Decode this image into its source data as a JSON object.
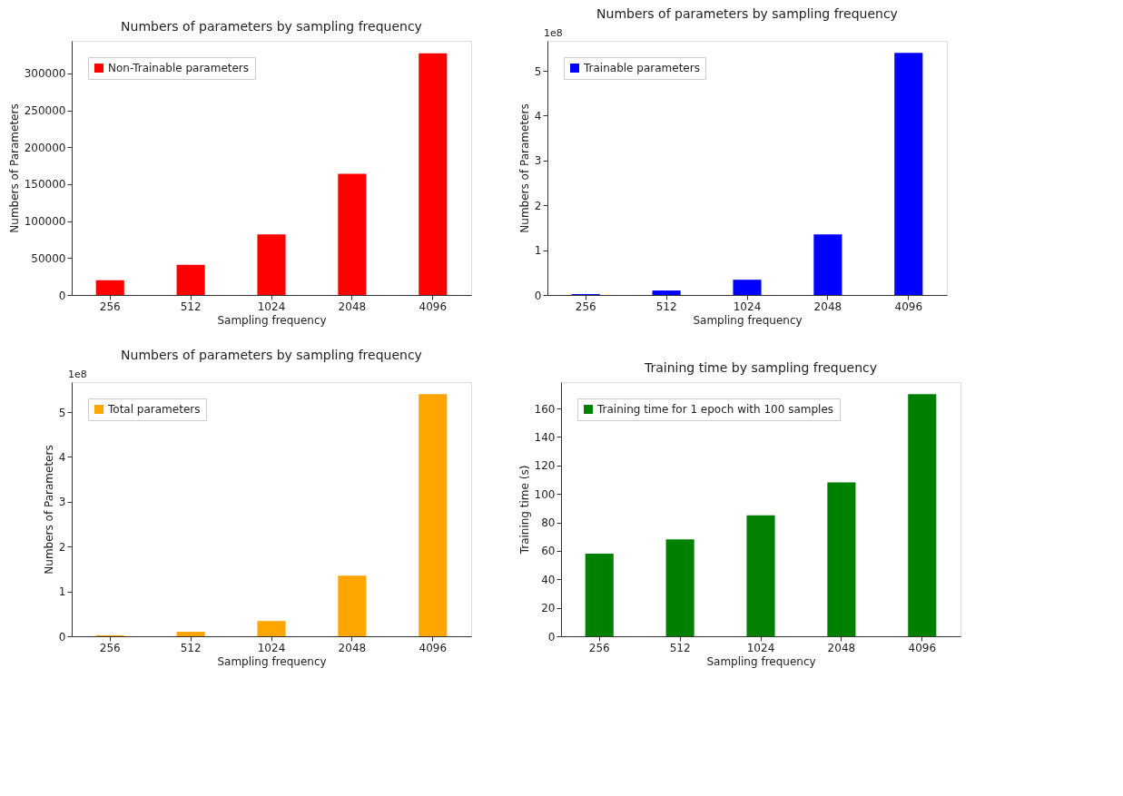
{
  "chart_data": [
    {
      "type": "bar",
      "title": "Numbers of parameters by sampling frequency",
      "xlabel": "Sampling frequency",
      "ylabel": "Numbers of Parameters",
      "categories": [
        "256",
        "512",
        "1024",
        "2048",
        "4096"
      ],
      "series": [
        {
          "name": "Non-Trainable parameters",
          "color": "#ff0000",
          "values": [
            20000,
            41000,
            82000,
            164000,
            327000
          ]
        }
      ],
      "ylim": [
        0,
        344000
      ],
      "yticks": [
        0,
        50000,
        100000,
        150000,
        200000,
        250000,
        300000
      ],
      "grid": false,
      "legend": "top left"
    },
    {
      "type": "bar",
      "title": "Numbers of parameters by sampling frequency",
      "xlabel": "Sampling frequency",
      "ylabel": "Numbers of Parameters",
      "categories": [
        "256",
        "512",
        "1024",
        "2048",
        "4096"
      ],
      "series": [
        {
          "name": "Trainable parameters",
          "color": "#0000ff",
          "values": [
            0.02,
            0.1,
            0.34,
            1.35,
            5.4
          ]
        }
      ],
      "ylim": [
        0,
        5.67
      ],
      "yticks": [
        0,
        1,
        2,
        3,
        4,
        5
      ],
      "annotations": [
        "1e8"
      ],
      "grid": false,
      "legend": "top left"
    },
    {
      "type": "bar",
      "title": "Numbers of parameters by sampling frequency",
      "xlabel": "Sampling frequency",
      "ylabel": "Numbers of Parameters",
      "categories": [
        "256",
        "512",
        "1024",
        "2048",
        "4096"
      ],
      "series": [
        {
          "name": "Total parameters",
          "color": "#ffa500",
          "values": [
            0.02,
            0.1,
            0.34,
            1.35,
            5.4
          ]
        }
      ],
      "ylim": [
        0,
        5.67
      ],
      "yticks": [
        0,
        1,
        2,
        3,
        4,
        5
      ],
      "annotations": [
        "1e8"
      ],
      "grid": false,
      "legend": "top left"
    },
    {
      "type": "bar",
      "title": "Training time by sampling frequency",
      "xlabel": "Sampling frequency",
      "ylabel": "Training time (s)",
      "categories": [
        "256",
        "512",
        "1024",
        "2048",
        "4096"
      ],
      "series": [
        {
          "name": "Training time for 1 epoch with 100 samples",
          "color": "#008000",
          "values": [
            58,
            68,
            85,
            108,
            170
          ]
        }
      ],
      "ylim": [
        0,
        178.5
      ],
      "yticks": [
        0,
        20,
        40,
        60,
        80,
        100,
        120,
        140,
        160
      ],
      "grid": false,
      "legend": "top left"
    }
  ]
}
